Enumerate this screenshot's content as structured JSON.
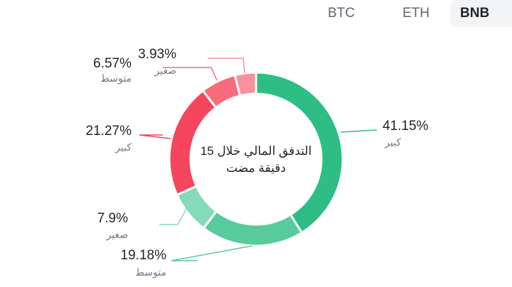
{
  "tabs": [
    {
      "label": "BTC",
      "active": false
    },
    {
      "label": "ETH",
      "active": false
    },
    {
      "label": "BNB",
      "active": true
    }
  ],
  "chart_data": {
    "type": "pie",
    "donut": true,
    "center_title": [
      "التدفق المالي خلال 15",
      "دقيقة مضت"
    ],
    "slices": [
      {
        "label": "كبير",
        "value": 41.15,
        "value_label": "41.15%",
        "color": "#2ebd85"
      },
      {
        "label": "متوسط",
        "value": 19.18,
        "value_label": "19.18%",
        "color": "#57cb9c"
      },
      {
        "label": "صغير",
        "value": 7.9,
        "value_label": "7.9%",
        "color": "#85dab7"
      },
      {
        "label": "كبير",
        "value": 21.27,
        "value_label": "21.27%",
        "color": "#f6465d"
      },
      {
        "label": "متوسط",
        "value": 6.57,
        "value_label": "6.57%",
        "color": "#f76a7c"
      },
      {
        "label": "صغير",
        "value": 3.93,
        "value_label": "3.93%",
        "color": "#f8909d"
      }
    ]
  }
}
